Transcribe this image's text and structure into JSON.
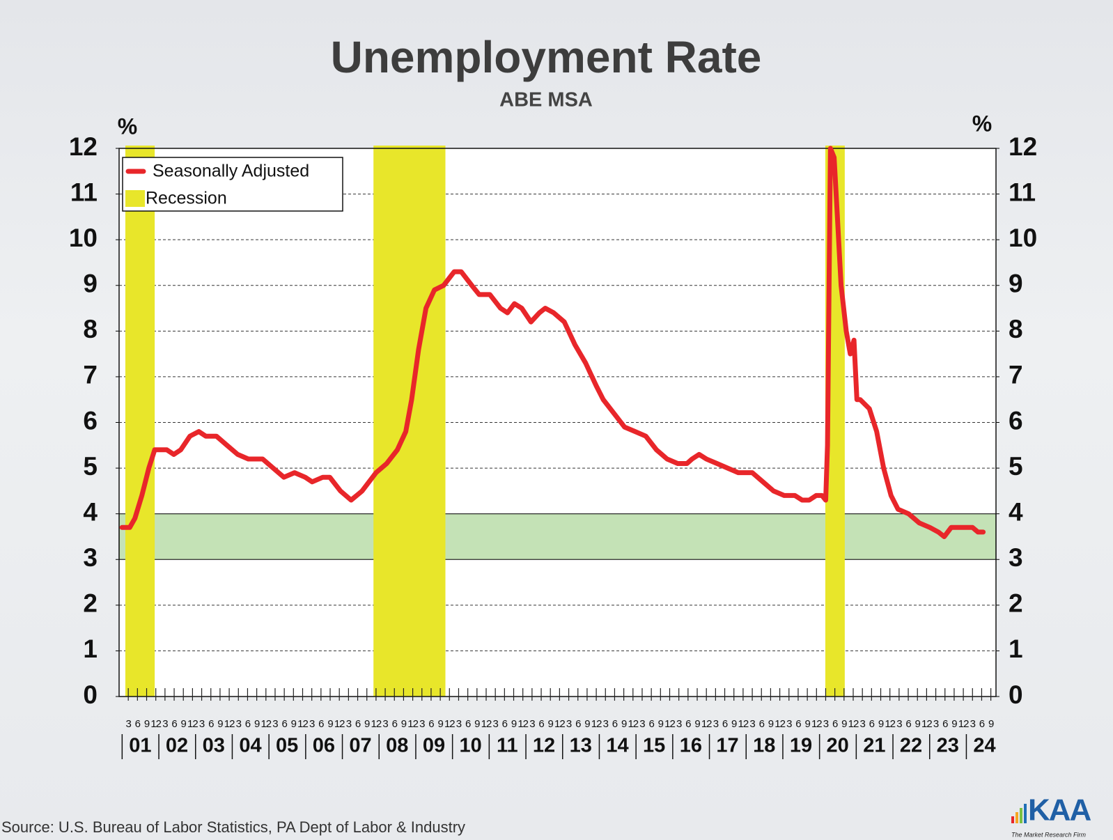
{
  "chart_data": {
    "type": "line",
    "title": "Unemployment Rate",
    "subtitle": "ABE MSA",
    "y_unit_label": "%",
    "y2_unit_label": "%",
    "source": "Source: U.S. Bureau of Labor Statistics, PA Dept of Labor & Industry",
    "legend": "upper left",
    "grid": true,
    "xlim": [
      2001,
      2024.89
    ],
    "ylim": [
      0,
      12
    ],
    "yticks": [
      0,
      1,
      2,
      3,
      4,
      5,
      6,
      7,
      8,
      9,
      10,
      11,
      12
    ],
    "y2lim": [
      0,
      12
    ],
    "y2ticks": [
      0,
      1,
      2,
      3,
      4,
      5,
      6,
      7,
      8,
      9,
      10,
      11,
      12
    ],
    "xticks": [
      {
        "value": 2001.5,
        "label": "01"
      },
      {
        "value": 2002.5,
        "label": "02"
      },
      {
        "value": 2003.5,
        "label": "03"
      },
      {
        "value": 2004.5,
        "label": "04"
      },
      {
        "value": 2005.5,
        "label": "05"
      },
      {
        "value": 2006.5,
        "label": "06"
      },
      {
        "value": 2007.5,
        "label": "07"
      },
      {
        "value": 2008.5,
        "label": "08"
      },
      {
        "value": 2009.5,
        "label": "09"
      },
      {
        "value": 2010.5,
        "label": "10"
      },
      {
        "value": 2011.5,
        "label": "11"
      },
      {
        "value": 2012.5,
        "label": "12"
      },
      {
        "value": 2013.5,
        "label": "13"
      },
      {
        "value": 2014.5,
        "label": "14"
      },
      {
        "value": 2015.5,
        "label": "15"
      },
      {
        "value": 2016.5,
        "label": "16"
      },
      {
        "value": 2017.5,
        "label": "17"
      },
      {
        "value": 2018.5,
        "label": "18"
      },
      {
        "value": 2019.5,
        "label": "19"
      },
      {
        "value": 2020.5,
        "label": "20"
      },
      {
        "value": 2021.5,
        "label": "21"
      },
      {
        "value": 2022.5,
        "label": "22"
      },
      {
        "value": 2023.5,
        "label": "23"
      },
      {
        "value": 2024.5,
        "label": "24"
      }
    ],
    "xticks_minor": [
      {
        "value": 2001.25,
        "label": "3"
      },
      {
        "value": 2001.5,
        "label": "6"
      },
      {
        "value": 2001.75,
        "label": "9"
      },
      {
        "value": 2002,
        "label": "12"
      },
      {
        "value": 2002.25,
        "label": "3"
      },
      {
        "value": 2002.5,
        "label": "6"
      },
      {
        "value": 2002.75,
        "label": "9"
      },
      {
        "value": 2003,
        "label": "12"
      },
      {
        "value": 2003.25,
        "label": "3"
      },
      {
        "value": 2003.5,
        "label": "6"
      },
      {
        "value": 2003.75,
        "label": "9"
      },
      {
        "value": 2004,
        "label": "12"
      },
      {
        "value": 2004.25,
        "label": "3"
      },
      {
        "value": 2004.5,
        "label": "6"
      },
      {
        "value": 2004.75,
        "label": "9"
      },
      {
        "value": 2005,
        "label": "12"
      },
      {
        "value": 2005.25,
        "label": "3"
      },
      {
        "value": 2005.5,
        "label": "6"
      },
      {
        "value": 2005.75,
        "label": "9"
      },
      {
        "value": 2006,
        "label": "12"
      },
      {
        "value": 2006.25,
        "label": "3"
      },
      {
        "value": 2006.5,
        "label": "6"
      },
      {
        "value": 2006.75,
        "label": "9"
      },
      {
        "value": 2007,
        "label": "12"
      },
      {
        "value": 2007.25,
        "label": "3"
      },
      {
        "value": 2007.5,
        "label": "6"
      },
      {
        "value": 2007.75,
        "label": "9"
      },
      {
        "value": 2008,
        "label": "12"
      },
      {
        "value": 2008.25,
        "label": "3"
      },
      {
        "value": 2008.5,
        "label": "6"
      },
      {
        "value": 2008.75,
        "label": "9"
      },
      {
        "value": 2009,
        "label": "12"
      },
      {
        "value": 2009.25,
        "label": "3"
      },
      {
        "value": 2009.5,
        "label": "6"
      },
      {
        "value": 2009.75,
        "label": "9"
      },
      {
        "value": 2010,
        "label": "12"
      },
      {
        "value": 2010.25,
        "label": "3"
      },
      {
        "value": 2010.5,
        "label": "6"
      },
      {
        "value": 2010.75,
        "label": "9"
      },
      {
        "value": 2011,
        "label": "12"
      },
      {
        "value": 2011.25,
        "label": "3"
      },
      {
        "value": 2011.5,
        "label": "6"
      },
      {
        "value": 2011.75,
        "label": "9"
      },
      {
        "value": 2012,
        "label": "12"
      },
      {
        "value": 2012.25,
        "label": "3"
      },
      {
        "value": 2012.5,
        "label": "6"
      },
      {
        "value": 2012.75,
        "label": "9"
      },
      {
        "value": 2013,
        "label": "12"
      },
      {
        "value": 2013.25,
        "label": "3"
      },
      {
        "value": 2013.5,
        "label": "6"
      },
      {
        "value": 2013.75,
        "label": "9"
      },
      {
        "value": 2014,
        "label": "12"
      },
      {
        "value": 2014.25,
        "label": "3"
      },
      {
        "value": 2014.5,
        "label": "6"
      },
      {
        "value": 2014.75,
        "label": "9"
      },
      {
        "value": 2015,
        "label": "12"
      },
      {
        "value": 2015.25,
        "label": "3"
      },
      {
        "value": 2015.5,
        "label": "6"
      },
      {
        "value": 2015.75,
        "label": "9"
      },
      {
        "value": 2016,
        "label": "12"
      },
      {
        "value": 2016.25,
        "label": "3"
      },
      {
        "value": 2016.5,
        "label": "6"
      },
      {
        "value": 2016.75,
        "label": "9"
      },
      {
        "value": 2017,
        "label": "12"
      },
      {
        "value": 2017.25,
        "label": "3"
      },
      {
        "value": 2017.5,
        "label": "6"
      },
      {
        "value": 2017.75,
        "label": "9"
      },
      {
        "value": 2018,
        "label": "12"
      },
      {
        "value": 2018.25,
        "label": "3"
      },
      {
        "value": 2018.5,
        "label": "6"
      },
      {
        "value": 2018.75,
        "label": "9"
      },
      {
        "value": 2019,
        "label": "12"
      },
      {
        "value": 2019.25,
        "label": "3"
      },
      {
        "value": 2019.5,
        "label": "6"
      },
      {
        "value": 2019.75,
        "label": "9"
      },
      {
        "value": 2020,
        "label": "12"
      },
      {
        "value": 2020.25,
        "label": "3"
      },
      {
        "value": 2020.5,
        "label": "6"
      },
      {
        "value": 2020.75,
        "label": "9"
      },
      {
        "value": 2021,
        "label": "12"
      },
      {
        "value": 2021.25,
        "label": "3"
      },
      {
        "value": 2021.5,
        "label": "6"
      },
      {
        "value": 2021.75,
        "label": "9"
      },
      {
        "value": 2022,
        "label": "12"
      },
      {
        "value": 2022.25,
        "label": "3"
      },
      {
        "value": 2022.5,
        "label": "6"
      },
      {
        "value": 2022.75,
        "label": "9"
      },
      {
        "value": 2023,
        "label": "12"
      },
      {
        "value": 2023.25,
        "label": "3"
      },
      {
        "value": 2023.5,
        "label": "6"
      },
      {
        "value": 2023.75,
        "label": "9"
      },
      {
        "value": 2024,
        "label": "12"
      },
      {
        "value": 2024.25,
        "label": "3"
      },
      {
        "value": 2024.5,
        "label": "6"
      },
      {
        "value": 2024.75,
        "label": "9"
      }
    ],
    "band": {
      "range": [
        3,
        4
      ],
      "color": "#c4e2b6"
    },
    "recessions": {
      "name": "Recession",
      "color": "#e8e62a",
      "spans": [
        [
          2001.17,
          2001.97
        ],
        [
          2007.93,
          2009.89
        ],
        [
          2020.24,
          2020.77
        ]
      ]
    },
    "series": [
      {
        "name": "Seasonally Adjusted",
        "color": "#e8262a",
        "x": [
          2001.08,
          2001.29,
          2001.43,
          2001.62,
          2001.81,
          2001.97,
          2002.3,
          2002.49,
          2002.68,
          2002.93,
          2003.17,
          2003.36,
          2003.65,
          2003.94,
          2004.23,
          2004.52,
          2004.91,
          2005.2,
          2005.49,
          2005.78,
          2006.07,
          2006.26,
          2006.55,
          2006.74,
          2007.03,
          2007.32,
          2007.62,
          2008.0,
          2008.29,
          2008.58,
          2008.81,
          2008.97,
          2009.16,
          2009.36,
          2009.59,
          2009.84,
          2010.13,
          2010.32,
          2010.61,
          2010.81,
          2011.1,
          2011.39,
          2011.58,
          2011.77,
          2011.97,
          2012.22,
          2012.45,
          2012.61,
          2012.84,
          2013.13,
          2013.42,
          2013.71,
          2014.0,
          2014.19,
          2014.48,
          2014.77,
          2015.06,
          2015.35,
          2015.64,
          2015.93,
          2016.22,
          2016.47,
          2016.61,
          2016.8,
          2017.0,
          2017.29,
          2017.58,
          2017.87,
          2018.25,
          2018.54,
          2018.83,
          2019.12,
          2019.41,
          2019.61,
          2019.8,
          2019.99,
          2020.15,
          2020.25,
          2020.3,
          2020.38,
          2020.48,
          2020.57,
          2020.67,
          2020.81,
          2020.92,
          2021.02,
          2021.1,
          2021.19,
          2021.44,
          2021.64,
          2021.83,
          2022.03,
          2022.22,
          2022.51,
          2022.8,
          2023.09,
          2023.32,
          2023.48,
          2023.67,
          2023.96,
          2024.25,
          2024.4,
          2024.54
        ],
        "values": [
          3.7,
          3.7,
          3.9,
          4.4,
          5.0,
          5.4,
          5.4,
          5.3,
          5.4,
          5.7,
          5.8,
          5.7,
          5.7,
          5.5,
          5.3,
          5.2,
          5.2,
          5.0,
          4.8,
          4.9,
          4.8,
          4.7,
          4.8,
          4.8,
          4.5,
          4.3,
          4.5,
          4.9,
          5.1,
          5.4,
          5.8,
          6.5,
          7.6,
          8.5,
          8.9,
          9.0,
          9.3,
          9.3,
          9.0,
          8.8,
          8.8,
          8.5,
          8.4,
          8.6,
          8.5,
          8.2,
          8.4,
          8.5,
          8.4,
          8.2,
          7.7,
          7.3,
          6.8,
          6.5,
          6.2,
          5.9,
          5.8,
          5.7,
          5.4,
          5.2,
          5.1,
          5.1,
          5.2,
          5.3,
          5.2,
          5.1,
          5.0,
          4.9,
          4.9,
          4.7,
          4.5,
          4.4,
          4.4,
          4.3,
          4.3,
          4.4,
          4.4,
          4.3,
          5.5,
          12.0,
          11.8,
          10.5,
          9.0,
          8.0,
          7.5,
          7.8,
          6.5,
          6.5,
          6.3,
          5.8,
          5.0,
          4.4,
          4.1,
          4.0,
          3.8,
          3.7,
          3.6,
          3.5,
          3.7,
          3.7,
          3.7,
          3.6,
          3.6
        ]
      }
    ]
  },
  "logo": {
    "text": "KAA",
    "tagline": "The Market Research Firm"
  }
}
